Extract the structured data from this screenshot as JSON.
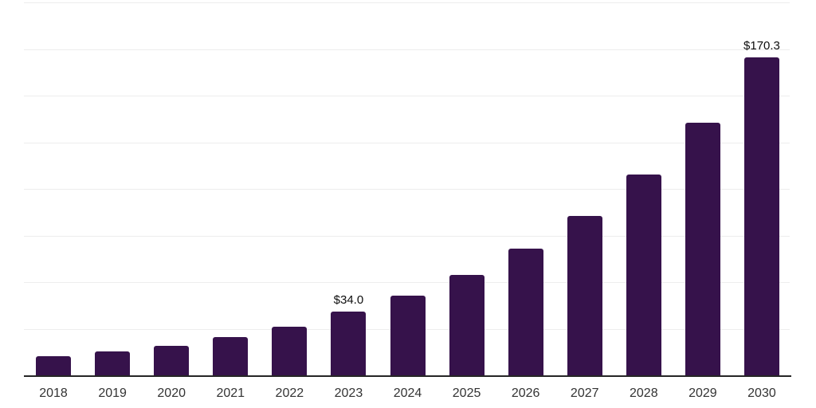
{
  "chart_data": {
    "type": "bar",
    "categories": [
      "2018",
      "2019",
      "2020",
      "2021",
      "2022",
      "2023",
      "2024",
      "2025",
      "2026",
      "2027",
      "2028",
      "2029",
      "2030"
    ],
    "values": [
      10.2,
      12.8,
      15.8,
      20.5,
      26.1,
      34.0,
      42.8,
      53.9,
      67.8,
      85.4,
      107.5,
      135.3,
      170.3
    ],
    "data_labels": [
      {
        "category": "2023",
        "text": "$34.0"
      },
      {
        "category": "2030",
        "text": "$170.3"
      }
    ],
    "title": "",
    "xlabel": "",
    "ylabel": "",
    "ylim": [
      0,
      200
    ],
    "gridline_step": 25,
    "grid": "horizontal",
    "legend": "none",
    "bar_color": "#36124b",
    "gridline_color": "#ededed",
    "axis_line_color": "#262626",
    "tick_label_color": "#333333",
    "value_label_color": "#0d0d0d"
  }
}
